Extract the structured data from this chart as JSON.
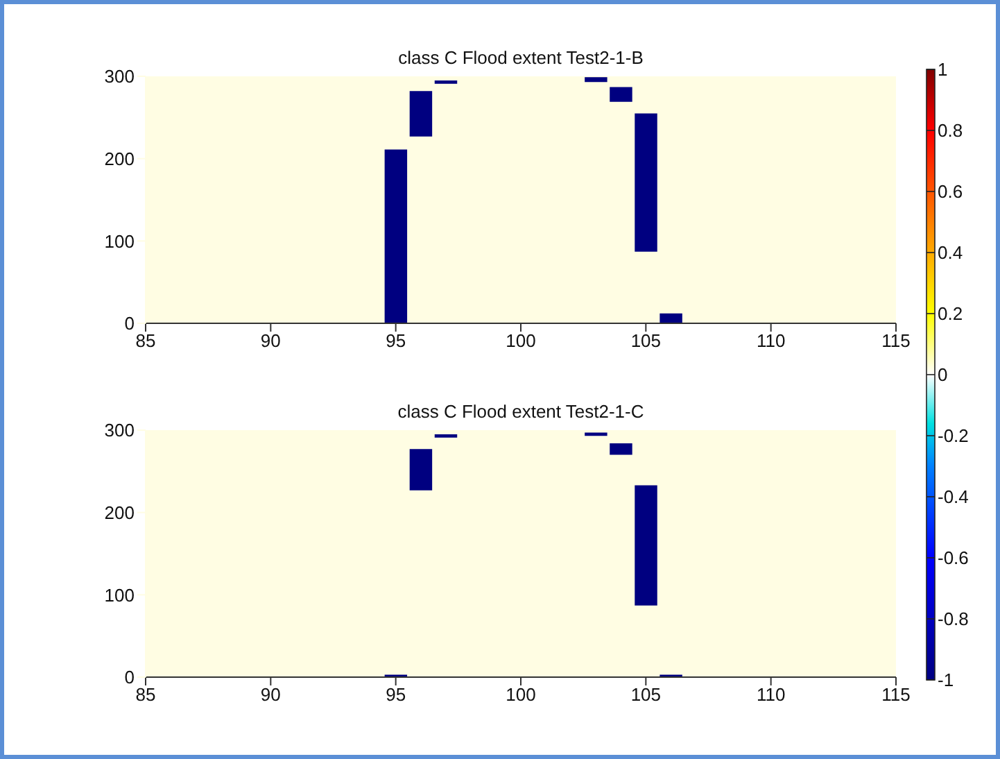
{
  "chart_data": [
    {
      "type": "bar",
      "title": "class C Flood extent Test2-1-B",
      "x": [
        95,
        96,
        97,
        103,
        104,
        105,
        106
      ],
      "values": [
        211,
        55,
        4,
        6,
        18,
        168,
        12
      ],
      "base": [
        0,
        227,
        291,
        293,
        269,
        87,
        0
      ],
      "color": "#000080",
      "xlim": [
        85,
        115
      ],
      "xticks": [
        85,
        90,
        95,
        100,
        105,
        110,
        115
      ],
      "ylim": [
        0,
        300
      ],
      "yticks": [
        0,
        100,
        200,
        300
      ],
      "clim": [
        -1,
        1
      ],
      "cticks": [
        -1,
        -0.8,
        -0.6,
        -0.4,
        -0.2,
        0,
        0.2,
        0.4,
        0.6,
        0.8,
        1
      ]
    },
    {
      "type": "bar",
      "title": "class C Flood extent Test2-1-C",
      "x": [
        95,
        96,
        97,
        103,
        104,
        105,
        106
      ],
      "values": [
        3,
        50,
        4,
        4,
        14,
        146,
        3
      ],
      "base": [
        0,
        227,
        291,
        293,
        270,
        87,
        0
      ],
      "color": "#000080",
      "xlim": [
        85,
        115
      ],
      "xticks": [
        85,
        90,
        95,
        100,
        105,
        110,
        115
      ],
      "ylim": [
        0,
        300
      ],
      "yticks": [
        0,
        100,
        200,
        300
      ]
    }
  ]
}
